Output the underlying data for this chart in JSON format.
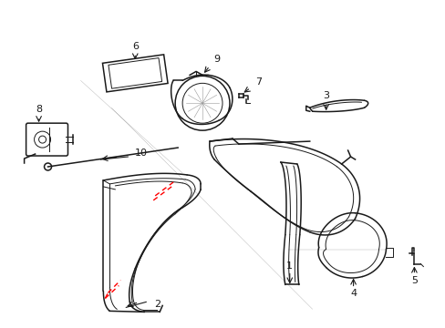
{
  "background_color": "#ffffff",
  "line_color": "#1a1a1a",
  "red_dashed_color": "#ff0000",
  "figsize": [
    4.89,
    3.6
  ],
  "dpi": 100
}
